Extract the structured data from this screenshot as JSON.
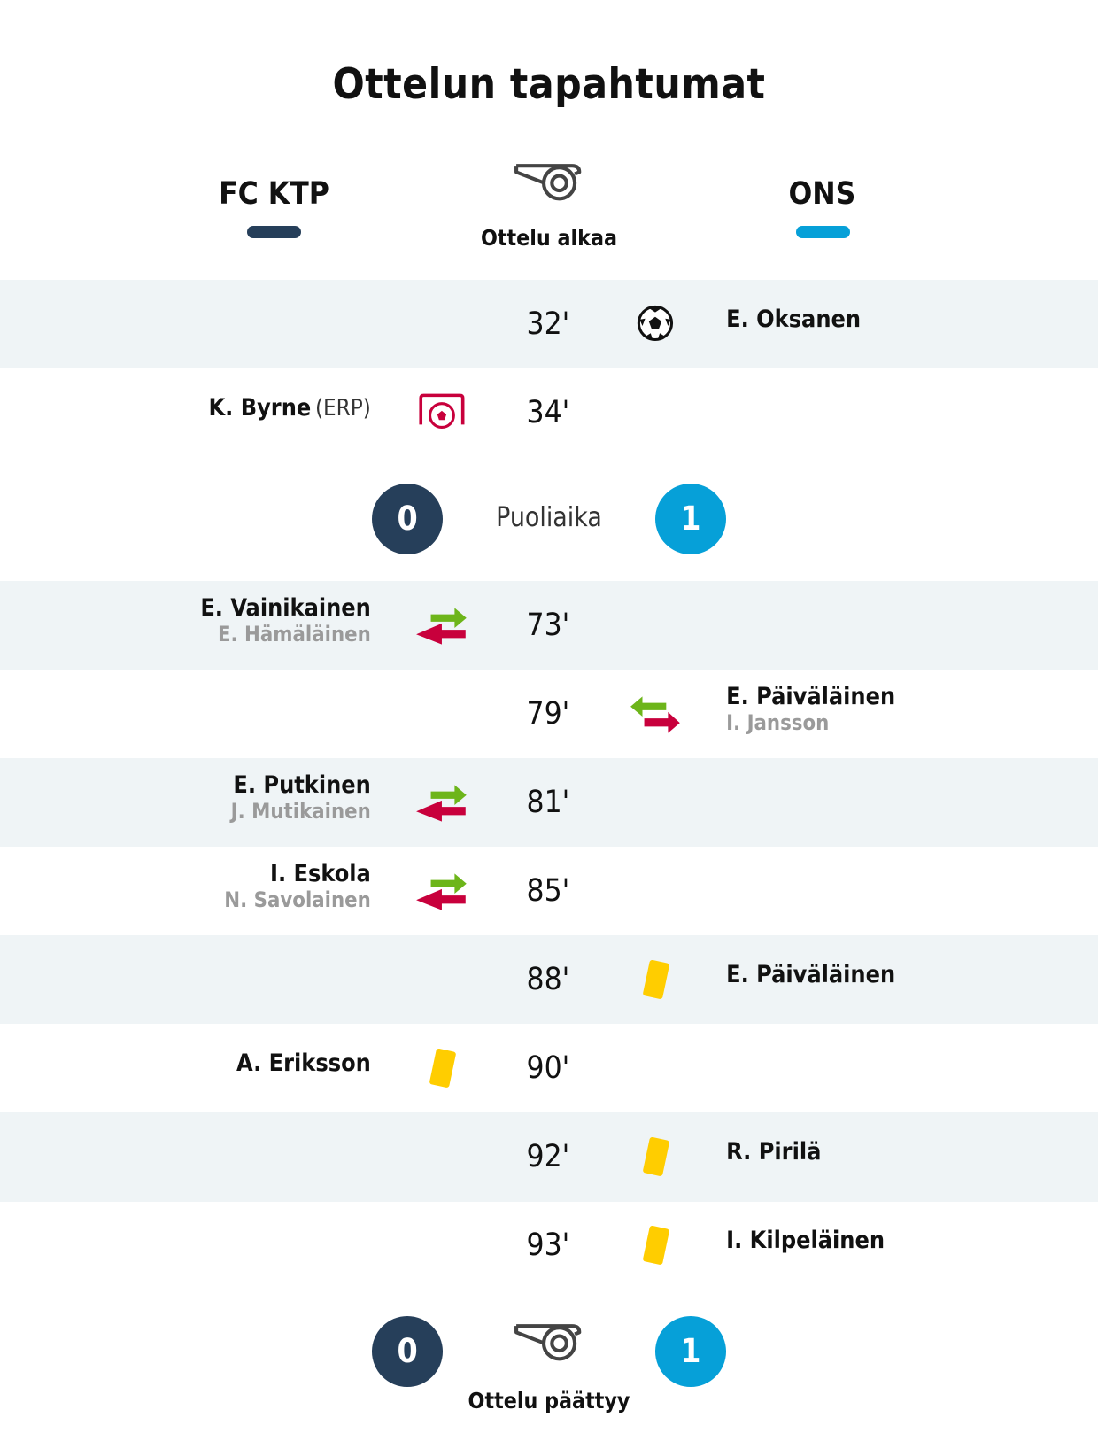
{
  "title": "Ottelun tapahtumat",
  "teams": {
    "home": {
      "name": "FC KTP",
      "color": "#263f5a"
    },
    "away": {
      "name": "ONS",
      "color": "#06a0d8"
    }
  },
  "start_label": "Ottelu alkaa",
  "halftime": {
    "label": "Puoliaika",
    "home": "0",
    "away": "1"
  },
  "fulltime": {
    "label": "Ottelu päättyy",
    "home": "0",
    "away": "1"
  },
  "events": [
    {
      "minute": "32'",
      "side": "away",
      "type": "goal-icon",
      "player": "E. Oksanen"
    },
    {
      "minute": "34'",
      "side": "home",
      "type": "own-goal-icon",
      "player": "K. Byrne",
      "note": "(ERP)"
    },
    {
      "minute": "73'",
      "side": "home",
      "type": "substitution-icon",
      "player": "E. Vainikainen",
      "sub": "E. Hämäläinen"
    },
    {
      "minute": "79'",
      "side": "away",
      "type": "substitution-icon",
      "player": "E. Päiväläinen",
      "sub": "I. Jansson"
    },
    {
      "minute": "81'",
      "side": "home",
      "type": "substitution-icon",
      "player": "E. Putkinen",
      "sub": "J. Mutikainen"
    },
    {
      "minute": "85'",
      "side": "home",
      "type": "substitution-icon",
      "player": "I. Eskola",
      "sub": "N. Savolainen"
    },
    {
      "minute": "88'",
      "side": "away",
      "type": "yellow-card-icon",
      "player": "E. Päiväläinen"
    },
    {
      "minute": "90'",
      "side": "home",
      "type": "yellow-card-icon",
      "player": "A. Eriksson"
    },
    {
      "minute": "92'",
      "side": "away",
      "type": "yellow-card-icon",
      "player": "R. Pirilä"
    },
    {
      "minute": "93'",
      "side": "away",
      "type": "yellow-card-icon",
      "player": "I. Kilpeläinen"
    }
  ]
}
